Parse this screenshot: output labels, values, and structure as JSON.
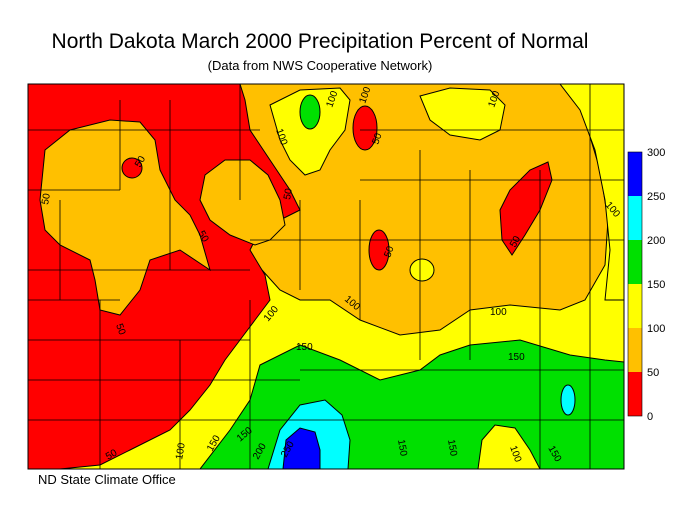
{
  "title": "North Dakota March 2000 Precipitation Percent of Normal",
  "subtitle": "(Data from NWS Cooperative Network)",
  "footer": "ND State Climate Office",
  "legend": {
    "ticks": [
      "300",
      "250",
      "200",
      "150",
      "100",
      "50",
      "0"
    ],
    "bins": [
      {
        "range": "250-300",
        "color": "#0000ff"
      },
      {
        "range": "200-250",
        "color": "#00ffff"
      },
      {
        "range": "150-200",
        "color": "#00e000"
      },
      {
        "range": "100-150",
        "color": "#ffff00"
      },
      {
        "range": "50-100",
        "color": "#ffc000"
      },
      {
        "range": "0-50",
        "color": "#ff0000"
      }
    ]
  },
  "contour_labels": [
    "100",
    "100",
    "100",
    "50",
    "50",
    "50",
    "50",
    "50",
    "50",
    "50",
    "100",
    "150",
    "100",
    "50",
    "100",
    "150",
    "150",
    "100",
    "150",
    "200",
    "250",
    "150",
    "150",
    "100",
    "150",
    "100",
    "100",
    "50"
  ]
}
